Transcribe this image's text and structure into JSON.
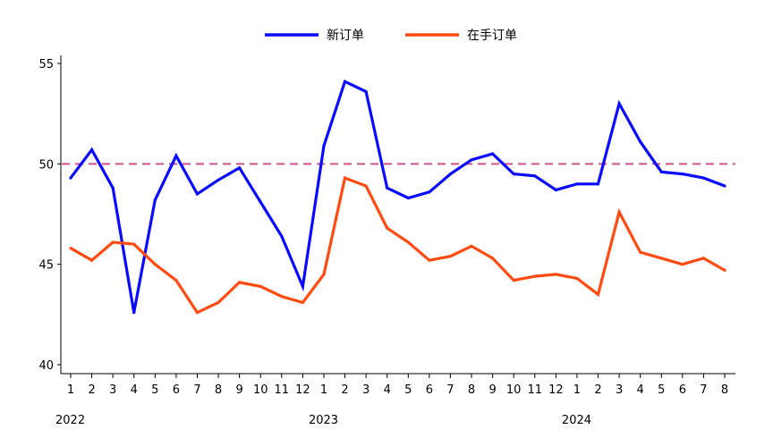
{
  "chart_data": {
    "type": "line",
    "categories": [
      "1",
      "2",
      "3",
      "4",
      "5",
      "6",
      "7",
      "8",
      "9",
      "10",
      "11",
      "12",
      "1",
      "2",
      "3",
      "4",
      "5",
      "6",
      "7",
      "8",
      "9",
      "10",
      "11",
      "12",
      "1",
      "2",
      "3",
      "4",
      "5",
      "6",
      "7",
      "8"
    ],
    "year_labels": [
      {
        "label": "2022",
        "index": 0
      },
      {
        "label": "2023",
        "index": 12
      },
      {
        "label": "2024",
        "index": 24
      }
    ],
    "series": [
      {
        "name": "新订单",
        "color": "#0a0aff",
        "values": [
          49.3,
          50.7,
          48.8,
          42.6,
          48.2,
          50.4,
          48.5,
          49.2,
          49.8,
          48.1,
          46.4,
          43.9,
          50.9,
          54.1,
          53.6,
          48.8,
          48.3,
          48.6,
          49.5,
          50.2,
          50.5,
          49.5,
          49.4,
          48.7,
          49.0,
          49.0,
          53.0,
          51.1,
          49.6,
          49.5,
          49.3,
          48.9
        ]
      },
      {
        "name": "在手订单",
        "color": "#ff4a10",
        "values": [
          45.8,
          45.2,
          46.1,
          46.0,
          45.0,
          44.2,
          42.6,
          43.1,
          44.1,
          43.9,
          43.4,
          43.1,
          44.5,
          49.3,
          48.9,
          46.8,
          46.1,
          45.2,
          45.4,
          45.9,
          45.3,
          44.2,
          44.4,
          44.5,
          44.3,
          43.5,
          47.6,
          45.6,
          45.3,
          45.0,
          45.3,
          44.7
        ]
      }
    ],
    "reference_line": {
      "value": 50,
      "color": "#d0508a"
    },
    "yticks": [
      "40",
      "45",
      "50",
      "55"
    ],
    "ylim": [
      40,
      55.5
    ],
    "grid": false,
    "legend": "top-center"
  }
}
